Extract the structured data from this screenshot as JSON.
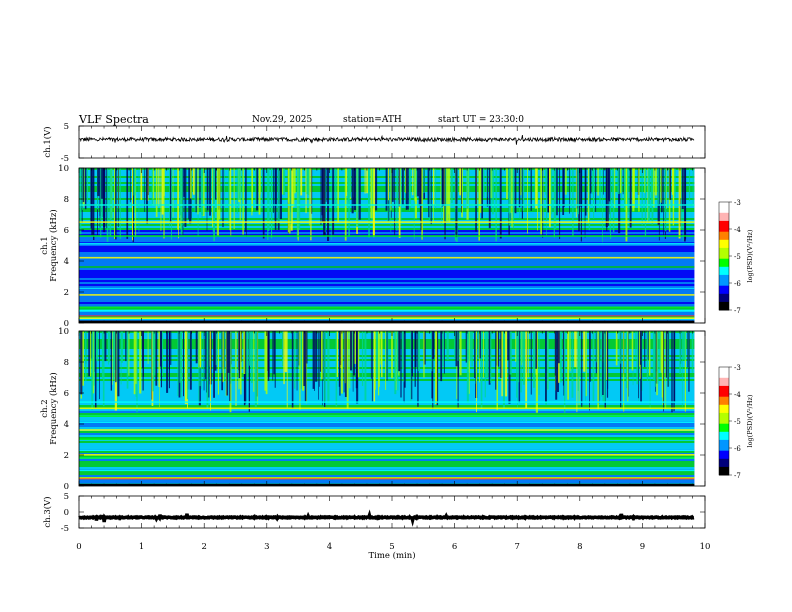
{
  "header": {
    "title": "VLF  Spectra",
    "date": "Nov.29, 2025",
    "station": "station=ATH",
    "start_ut": "start  UT  =   23:30:0"
  },
  "colors": {
    "scale": [
      "#000000",
      "#00007a",
      "#0000ff",
      "#0096ff",
      "#00ffff",
      "#00ff00",
      "#b4ff00",
      "#ffff00",
      "#ff8000",
      "#ff0000",
      "#ffb4b4",
      "#ffffff"
    ],
    "background": "#ffffff",
    "trace": "#000000"
  },
  "chart_data": [
    {
      "type": "line",
      "name": "ch1-waveform",
      "ylabel": "ch.1(V)",
      "ylim": [
        -5,
        5
      ],
      "yticks": [
        "5",
        "-5"
      ],
      "xlim": [
        0,
        10
      ],
      "x_end": 9.83,
      "mean": 0.8,
      "amplitude": 0.6
    },
    {
      "type": "heatmap",
      "name": "ch1-spectrogram",
      "ylabel": "ch.1\nFrequency  (kHz)",
      "ylim": [
        0,
        10
      ],
      "yticks": [
        "0",
        "2",
        "4",
        "6",
        "8",
        "10"
      ],
      "xlim": [
        0,
        10
      ],
      "x_end": 9.83,
      "colorbar": {
        "label": "log(PSD)(V²/Hz)",
        "range": [
          -7,
          -3
        ],
        "ticks": [
          "-3",
          "-4",
          "-5",
          "-6",
          "-7"
        ]
      },
      "bands_khz": [
        0.3,
        0.8,
        1.0,
        1.8,
        2.2,
        3.6,
        4.2,
        5.1,
        5.6,
        6.5,
        7.6
      ],
      "upper_region_start_khz": 6.0
    },
    {
      "type": "heatmap",
      "name": "ch2-spectrogram",
      "ylabel": "ch.2\nFrequency  (kHz)",
      "ylim": [
        0,
        10
      ],
      "yticks": [
        "0",
        "2",
        "4",
        "6",
        "8",
        "10"
      ],
      "xlim": [
        0,
        10
      ],
      "x_end": 9.83,
      "colorbar": {
        "label": "log(PSD)(V²/Hz)",
        "range": [
          -7,
          -3
        ],
        "ticks": [
          "-3",
          "-4",
          "-5",
          "-6",
          "-7"
        ]
      },
      "bands_khz": [
        0.5,
        1.0,
        1.8,
        2.0,
        2.3,
        3.0,
        3.6,
        4.1,
        4.5,
        5.0,
        5.4
      ],
      "upper_region_start_khz": 5.6
    },
    {
      "type": "line",
      "name": "ch3-waveform",
      "ylabel": "ch.3(V)",
      "ylim": [
        -5,
        5
      ],
      "yticks": [
        "5",
        "0",
        "-5"
      ],
      "xlim": [
        0,
        10
      ],
      "x_end": 9.83,
      "mean": -1.7,
      "amplitude": 0.15,
      "xlabel": "Time  (min)",
      "xticks": [
        "0",
        "1",
        "2",
        "3",
        "4",
        "5",
        "6",
        "7",
        "8",
        "9",
        "10"
      ]
    }
  ]
}
